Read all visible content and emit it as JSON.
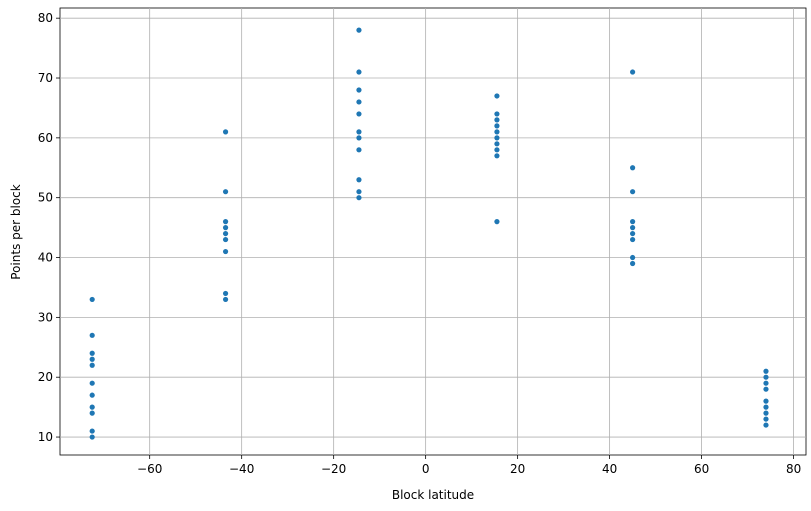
{
  "chart_data": {
    "type": "scatter",
    "x_label": "Block latitude",
    "y_label": "Points per block",
    "series": [
      {
        "color": "#1f77b4",
        "x": [
          -72.5,
          -72.5,
          -72.5,
          -72.5,
          -72.5,
          -72.5,
          -72.5,
          -72.5,
          -72.5,
          -72.5,
          -72.5,
          -43.5,
          -43.5,
          -43.5,
          -43.5,
          -43.5,
          -43.5,
          -43.5,
          -43.5,
          -43.5,
          -14.5,
          -14.5,
          -14.5,
          -14.5,
          -14.5,
          -14.5,
          -14.5,
          -14.5,
          -14.5,
          -14.5,
          -14.5,
          15.5,
          15.5,
          15.5,
          15.5,
          15.5,
          15.5,
          15.5,
          15.5,
          15.5,
          15.5,
          45,
          45,
          45,
          45,
          45,
          45,
          45,
          45,
          45,
          74,
          74,
          74,
          74,
          74,
          74,
          74,
          74,
          74
        ],
        "values": [
          33,
          27,
          24,
          23,
          22,
          19,
          17,
          15,
          14,
          11,
          10,
          61,
          51,
          46,
          45,
          44,
          43,
          41,
          34,
          33,
          78,
          71,
          68,
          66,
          64,
          61,
          60,
          58,
          53,
          51,
          50,
          67,
          64,
          63,
          62,
          61,
          60,
          59,
          58,
          57,
          46,
          71,
          55,
          51,
          46,
          45,
          44,
          43,
          40,
          39,
          21,
          20,
          19,
          18,
          16,
          15,
          14,
          13,
          12
        ]
      }
    ],
    "xlim": [
      -79.5,
      82.7
    ],
    "xticks": [
      -60,
      -40,
      -20,
      0,
      20,
      40,
      60,
      80
    ],
    "ylim": [
      7,
      81.7
    ],
    "yticks": [
      10,
      20,
      30,
      40,
      50,
      60,
      70,
      80
    ],
    "grid": true
  }
}
